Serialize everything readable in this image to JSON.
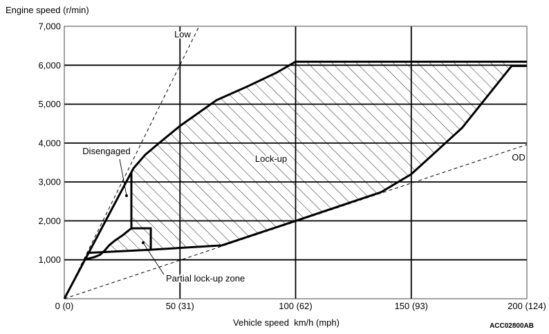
{
  "chart_data": {
    "type": "line",
    "ylabel": "Engine speed (r/min)",
    "xlabel": "Vehicle speed  km/h (mph)",
    "xlim": [
      0,
      200
    ],
    "ylim": [
      0,
      7000
    ],
    "grid": true,
    "x_ticks": [
      {
        "value": 0,
        "label": "0 (0)"
      },
      {
        "value": 50,
        "label": "50 (31)"
      },
      {
        "value": 100,
        "label": "100 (62)"
      },
      {
        "value": 150,
        "label": "150 (93)"
      },
      {
        "value": 200,
        "label": "200 (124)"
      }
    ],
    "y_ticks": [
      {
        "value": 1000,
        "label": "1,000"
      },
      {
        "value": 2000,
        "label": "2,000"
      },
      {
        "value": 3000,
        "label": "3,000"
      },
      {
        "value": 4000,
        "label": "4,000"
      },
      {
        "value": 5000,
        "label": "5,000"
      },
      {
        "value": 6000,
        "label": "6,000"
      },
      {
        "value": 7000,
        "label": "7,000"
      }
    ],
    "series": [
      {
        "name": "Low",
        "dashed": true,
        "points": [
          [
            0,
            0
          ],
          [
            58.3,
            7000
          ]
        ]
      },
      {
        "name": "OD",
        "dashed": true,
        "points": [
          [
            0,
            0
          ],
          [
            200,
            3960
          ]
        ]
      },
      {
        "dashed": false,
        "points": [
          [
            0,
            0
          ],
          [
            29.9,
            3350
          ],
          [
            35,
            3700
          ],
          [
            41,
            4000
          ],
          [
            50,
            4440
          ],
          [
            65.8,
            5100
          ],
          [
            79,
            5450
          ],
          [
            91.8,
            5810
          ],
          [
            100,
            6090
          ],
          [
            200,
            6090
          ]
        ]
      },
      {
        "dashed": false,
        "points": [
          [
            10.5,
            1180
          ],
          [
            37.4,
            1260
          ],
          [
            68,
            1370
          ],
          [
            100,
            2000
          ],
          [
            137,
            2740
          ],
          [
            150,
            3200
          ],
          [
            172,
            4390
          ],
          [
            193.4,
            5980
          ],
          [
            200,
            5980
          ]
        ]
      },
      {
        "dashed": false,
        "points": [
          [
            29,
            3250
          ],
          [
            29,
            1810
          ],
          [
            37.4,
            1810
          ],
          [
            37.4,
            1260
          ]
        ]
      },
      {
        "dashed": false,
        "points": [
          [
            9,
            1010
          ],
          [
            13,
            1070
          ],
          [
            15.5,
            1130
          ],
          [
            17.5,
            1240
          ],
          [
            19.5,
            1380
          ],
          [
            22,
            1500
          ],
          [
            25,
            1620
          ],
          [
            29,
            1810
          ]
        ]
      }
    ],
    "regions": [
      {
        "label": "Lock-up",
        "hatched": true,
        "polygon": [
          [
            29,
            3250
          ],
          [
            29.9,
            3350
          ],
          [
            35,
            3700
          ],
          [
            41,
            4000
          ],
          [
            50,
            4440
          ],
          [
            65.8,
            5100
          ],
          [
            79,
            5450
          ],
          [
            91.8,
            5810
          ],
          [
            100,
            6090
          ],
          [
            193.4,
            6090
          ],
          [
            193.4,
            5980
          ],
          [
            172,
            4390
          ],
          [
            150,
            3200
          ],
          [
            137,
            2740
          ],
          [
            100,
            2000
          ],
          [
            68,
            1370
          ],
          [
            37.4,
            1260
          ],
          [
            37.4,
            1810
          ],
          [
            29,
            1810
          ]
        ]
      },
      {
        "label": "Partial lock-up zone",
        "hatched": true,
        "polygon": [
          [
            16.5,
            1198
          ],
          [
            17.5,
            1240
          ],
          [
            19.5,
            1380
          ],
          [
            22,
            1500
          ],
          [
            25,
            1620
          ],
          [
            29,
            1810
          ],
          [
            37.4,
            1810
          ],
          [
            37.4,
            1260
          ]
        ]
      },
      {
        "label": "Disengaged",
        "hatched": false
      }
    ],
    "figure_code": "ACC02800AB"
  }
}
